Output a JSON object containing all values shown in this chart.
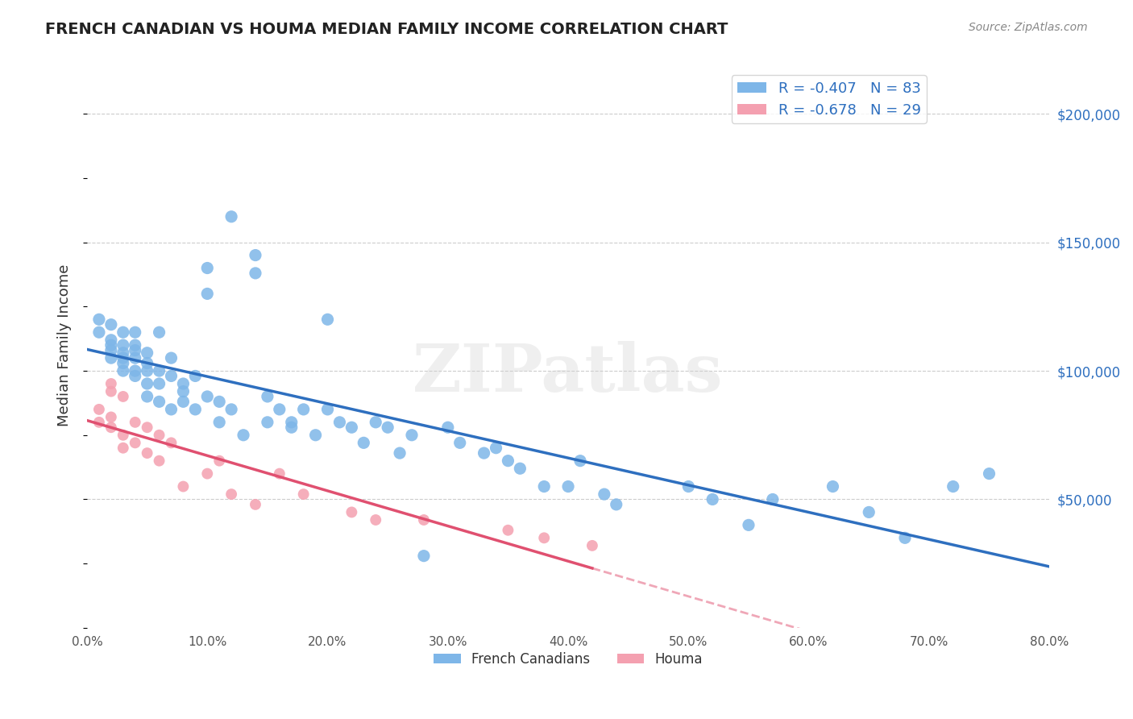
{
  "title": "FRENCH CANADIAN VS HOUMA MEDIAN FAMILY INCOME CORRELATION CHART",
  "source": "Source: ZipAtlas.com",
  "ylabel": "Median Family Income",
  "ytick_labels": [
    "$50,000",
    "$100,000",
    "$150,000",
    "$200,000"
  ],
  "ytick_values": [
    50000,
    100000,
    150000,
    200000
  ],
  "ymin": 0,
  "ymax": 220000,
  "xmin": 0.0,
  "xmax": 0.8,
  "legend_blue_r": "R = -0.407",
  "legend_blue_n": "N = 83",
  "legend_pink_r": "R = -0.678",
  "legend_pink_n": "N = 29",
  "blue_color": "#7EB6E8",
  "pink_color": "#F4A0B0",
  "blue_line_color": "#2E6FBF",
  "pink_line_color": "#E05070",
  "watermark": "ZIPatlas",
  "blue_scatter_x": [
    0.01,
    0.01,
    0.02,
    0.02,
    0.02,
    0.02,
    0.02,
    0.03,
    0.03,
    0.03,
    0.03,
    0.03,
    0.03,
    0.04,
    0.04,
    0.04,
    0.04,
    0.04,
    0.04,
    0.05,
    0.05,
    0.05,
    0.05,
    0.05,
    0.06,
    0.06,
    0.06,
    0.06,
    0.07,
    0.07,
    0.07,
    0.08,
    0.08,
    0.08,
    0.09,
    0.09,
    0.1,
    0.1,
    0.1,
    0.11,
    0.11,
    0.12,
    0.12,
    0.13,
    0.14,
    0.14,
    0.15,
    0.15,
    0.16,
    0.17,
    0.17,
    0.18,
    0.19,
    0.2,
    0.2,
    0.21,
    0.22,
    0.23,
    0.24,
    0.25,
    0.26,
    0.27,
    0.28,
    0.3,
    0.31,
    0.33,
    0.34,
    0.35,
    0.36,
    0.38,
    0.4,
    0.41,
    0.43,
    0.44,
    0.5,
    0.52,
    0.55,
    0.57,
    0.62,
    0.65,
    0.68,
    0.72,
    0.75
  ],
  "blue_scatter_y": [
    115000,
    120000,
    110000,
    118000,
    105000,
    112000,
    108000,
    103000,
    107000,
    100000,
    115000,
    105000,
    110000,
    108000,
    115000,
    100000,
    98000,
    105000,
    110000,
    95000,
    100000,
    107000,
    90000,
    103000,
    115000,
    95000,
    100000,
    88000,
    105000,
    98000,
    85000,
    95000,
    88000,
    92000,
    98000,
    85000,
    90000,
    140000,
    130000,
    80000,
    88000,
    85000,
    160000,
    75000,
    145000,
    138000,
    80000,
    90000,
    85000,
    80000,
    78000,
    85000,
    75000,
    120000,
    85000,
    80000,
    78000,
    72000,
    80000,
    78000,
    68000,
    75000,
    28000,
    78000,
    72000,
    68000,
    70000,
    65000,
    62000,
    55000,
    55000,
    65000,
    52000,
    48000,
    55000,
    50000,
    40000,
    50000,
    55000,
    45000,
    35000,
    55000,
    60000
  ],
  "pink_scatter_x": [
    0.01,
    0.01,
    0.02,
    0.02,
    0.02,
    0.02,
    0.03,
    0.03,
    0.03,
    0.04,
    0.04,
    0.05,
    0.05,
    0.06,
    0.06,
    0.07,
    0.08,
    0.1,
    0.11,
    0.12,
    0.14,
    0.16,
    0.18,
    0.22,
    0.24,
    0.28,
    0.35,
    0.38,
    0.42
  ],
  "pink_scatter_y": [
    85000,
    80000,
    92000,
    95000,
    78000,
    82000,
    90000,
    75000,
    70000,
    80000,
    72000,
    78000,
    68000,
    75000,
    65000,
    72000,
    55000,
    60000,
    65000,
    52000,
    48000,
    60000,
    52000,
    45000,
    42000,
    42000,
    38000,
    35000,
    32000
  ]
}
